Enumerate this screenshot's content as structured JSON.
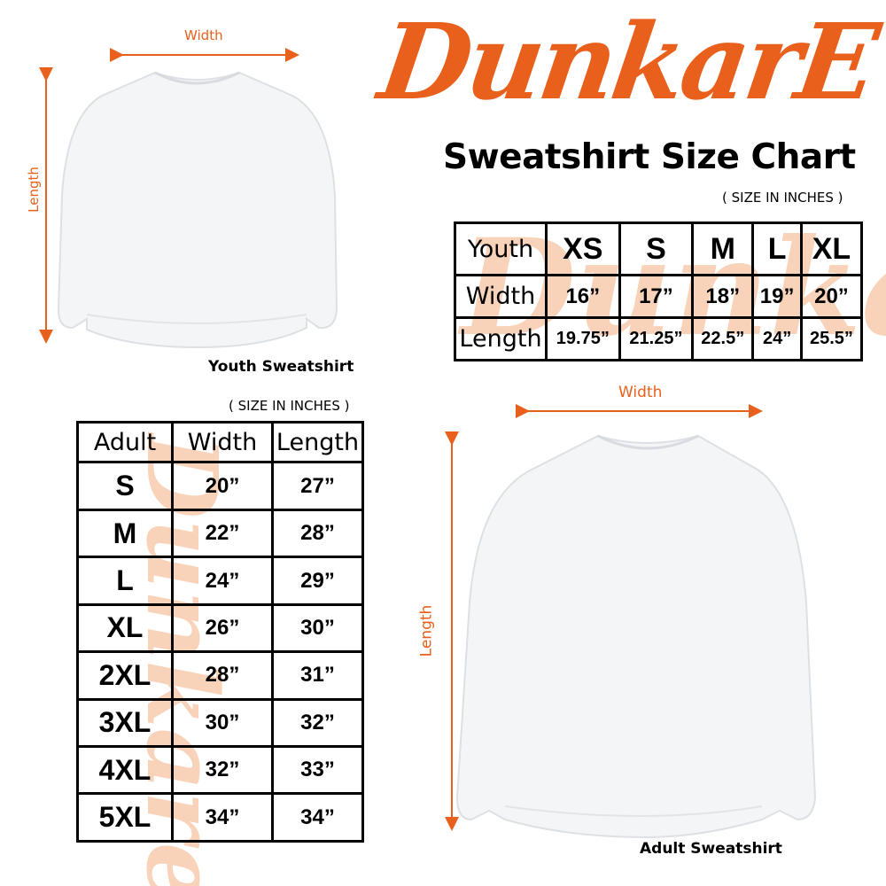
{
  "brand": {
    "logo_text": "DunkarE",
    "accent": "#e8601c"
  },
  "title": "Sweatshirt Size Chart",
  "youth": {
    "units_note": "( SIZE IN INCHES )",
    "caption": "Youth Sweatshirt",
    "width_label": "Width",
    "length_label": "Length",
    "table": {
      "header": [
        "Youth",
        "XS",
        "S",
        "M",
        "L",
        "XL"
      ],
      "rows": [
        [
          "Width",
          "16”",
          "17”",
          "18”",
          "19”",
          "20”"
        ],
        [
          "Length",
          "19.75”",
          "21.25”",
          "22.5”",
          "24”",
          "25.5”"
        ]
      ]
    }
  },
  "adult": {
    "units_note": "( SIZE IN INCHES )",
    "caption": "Adult Sweatshirt",
    "width_label": "Width",
    "length_label": "Length",
    "table": {
      "header": [
        "Adult",
        "Width",
        "Length"
      ],
      "rows": [
        [
          "S",
          "20”",
          "27”"
        ],
        [
          "M",
          "22”",
          "28”"
        ],
        [
          "L",
          "24”",
          "29”"
        ],
        [
          "XL",
          "26”",
          "30”"
        ],
        [
          "2XL",
          "28”",
          "31”"
        ],
        [
          "3XL",
          "30”",
          "32”"
        ],
        [
          "4XL",
          "32”",
          "33”"
        ],
        [
          "5XL",
          "34”",
          "34”"
        ]
      ]
    }
  }
}
